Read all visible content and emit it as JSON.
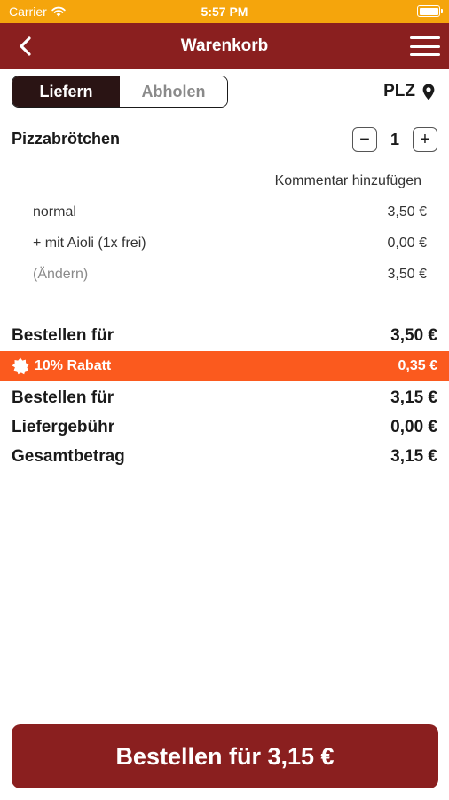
{
  "status_bar": {
    "carrier": "Carrier",
    "time": "5:57 PM"
  },
  "nav": {
    "title": "Warenkorb"
  },
  "mode": {
    "deliver_label": "Liefern",
    "pickup_label": "Abholen",
    "selected": "Liefern"
  },
  "location": {
    "label": "PLZ"
  },
  "cart_item": {
    "name": "Pizzabrötchen",
    "quantity": "1",
    "minus_label": "−",
    "plus_label": "+",
    "comment_label": "Kommentar hinzufügen",
    "options": [
      {
        "label": "normal",
        "price": "3,50 €"
      },
      {
        "label": "+ mit Aioli (1x frei)",
        "price": "0,00 €"
      },
      {
        "label": "(Ändern)",
        "price": "3,50 €"
      }
    ]
  },
  "summary": {
    "subtotal": {
      "label": "Bestellen für",
      "value": "3,50 €"
    },
    "discount": {
      "label": "10% Rabatt",
      "value": "0,35 €"
    },
    "after_discount": {
      "label": "Bestellen für",
      "value": "3,15 €"
    },
    "delivery_fee": {
      "label": "Liefergebühr",
      "value": "0,00 €"
    },
    "total": {
      "label": "Gesamtbetrag",
      "value": "3,15 €"
    }
  },
  "order_button": {
    "label": "Bestellen für 3,15 €"
  },
  "colors": {
    "status_bar": "#f5a50c",
    "brand": "#8a1f1f",
    "discount": "#fb5a1e",
    "segment_active": "#2a1414"
  }
}
